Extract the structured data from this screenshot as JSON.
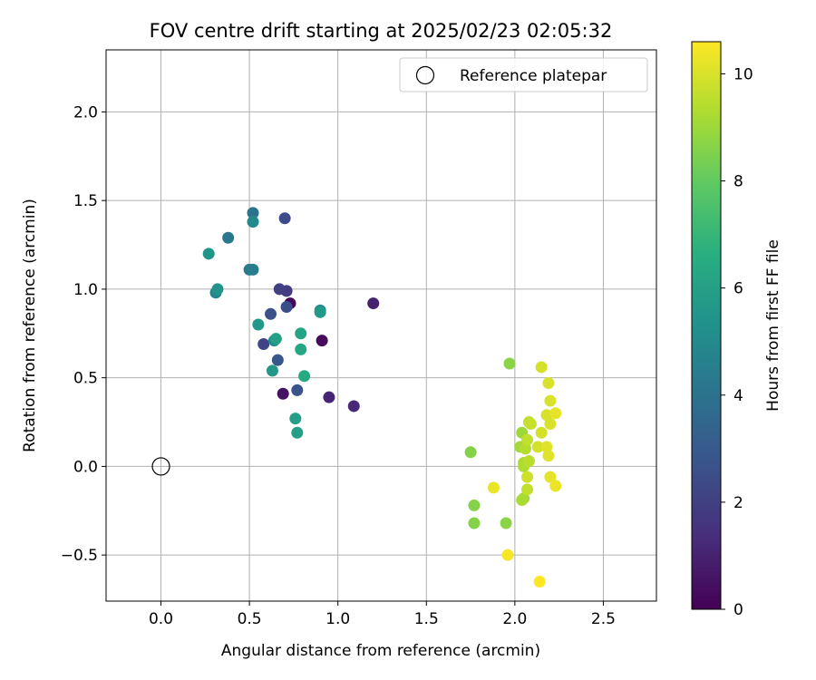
{
  "chart_data": {
    "type": "scatter",
    "title": "FOV centre drift starting at 2025/02/23 02:05:32",
    "xlabel": "Angular distance from reference (arcmin)",
    "ylabel": "Rotation from reference (arcmin)",
    "xlim": [
      -0.31,
      2.8
    ],
    "ylim": [
      -0.76,
      2.35
    ],
    "xticks": [
      0.0,
      0.5,
      1.0,
      1.5,
      2.0,
      2.5
    ],
    "xtick_labels": [
      "0.0",
      "0.5",
      "1.0",
      "1.5",
      "2.0",
      "2.5"
    ],
    "yticks": [
      -0.5,
      0.0,
      0.5,
      1.0,
      1.5,
      2.0
    ],
    "ytick_labels": [
      "−0.5",
      "0.0",
      "0.5",
      "1.0",
      "1.5",
      "2.0"
    ],
    "grid": true,
    "legend": {
      "placement": "top-right",
      "entries": [
        "Reference platepar"
      ]
    },
    "colormap": "viridis",
    "colorbar": {
      "label": "Hours from first FF file",
      "range": [
        0,
        10.6
      ],
      "ticks": [
        0,
        2,
        4,
        6,
        8,
        10
      ],
      "tick_labels": [
        "0",
        "2",
        "4",
        "6",
        "8",
        "10"
      ]
    },
    "reference_point": {
      "x": 0.0,
      "y": 0.0
    },
    "points": [
      {
        "x": 0.73,
        "y": 0.92,
        "h": 0.2
      },
      {
        "x": 0.91,
        "y": 0.71,
        "h": 0.3
      },
      {
        "x": 0.69,
        "y": 0.41,
        "h": 0.5
      },
      {
        "x": 1.2,
        "y": 0.92,
        "h": 1.0
      },
      {
        "x": 0.95,
        "y": 0.39,
        "h": 1.1
      },
      {
        "x": 1.09,
        "y": 0.34,
        "h": 1.2
      },
      {
        "x": 0.71,
        "y": 0.99,
        "h": 1.9
      },
      {
        "x": 0.67,
        "y": 1.0,
        "h": 2.0
      },
      {
        "x": 0.58,
        "y": 0.69,
        "h": 2.2
      },
      {
        "x": 0.7,
        "y": 1.4,
        "h": 2.4
      },
      {
        "x": 0.71,
        "y": 0.9,
        "h": 2.5
      },
      {
        "x": 0.62,
        "y": 0.86,
        "h": 2.6
      },
      {
        "x": 0.77,
        "y": 0.43,
        "h": 2.7
      },
      {
        "x": 0.66,
        "y": 0.6,
        "h": 2.8
      },
      {
        "x": 0.52,
        "y": 1.43,
        "h": 4.0
      },
      {
        "x": 0.38,
        "y": 1.29,
        "h": 4.2
      },
      {
        "x": 0.5,
        "y": 1.11,
        "h": 4.4
      },
      {
        "x": 0.52,
        "y": 1.11,
        "h": 4.5
      },
      {
        "x": 0.31,
        "y": 0.98,
        "h": 4.8
      },
      {
        "x": 0.52,
        "y": 1.38,
        "h": 5.0
      },
      {
        "x": 0.64,
        "y": 0.71,
        "h": 5.0
      },
      {
        "x": 0.9,
        "y": 0.88,
        "h": 5.1
      },
      {
        "x": 0.27,
        "y": 1.2,
        "h": 5.5
      },
      {
        "x": 0.32,
        "y": 1.0,
        "h": 5.4
      },
      {
        "x": 0.55,
        "y": 0.8,
        "h": 5.6
      },
      {
        "x": 0.63,
        "y": 0.54,
        "h": 5.6
      },
      {
        "x": 0.9,
        "y": 0.87,
        "h": 5.7
      },
      {
        "x": 0.76,
        "y": 0.27,
        "h": 5.9
      },
      {
        "x": 0.77,
        "y": 0.19,
        "h": 6.0
      },
      {
        "x": 0.65,
        "y": 0.72,
        "h": 6.0
      },
      {
        "x": 0.79,
        "y": 0.75,
        "h": 6.1
      },
      {
        "x": 0.79,
        "y": 0.66,
        "h": 6.3
      },
      {
        "x": 0.81,
        "y": 0.51,
        "h": 6.4
      },
      {
        "x": 1.75,
        "y": 0.08,
        "h": 8.6
      },
      {
        "x": 1.77,
        "y": -0.22,
        "h": 8.6
      },
      {
        "x": 1.77,
        "y": -0.32,
        "h": 8.6
      },
      {
        "x": 1.95,
        "y": -0.32,
        "h": 8.7
      },
      {
        "x": 1.97,
        "y": 0.58,
        "h": 8.7
      },
      {
        "x": 2.04,
        "y": 0.19,
        "h": 9.0
      },
      {
        "x": 2.03,
        "y": 0.11,
        "h": 9.1
      },
      {
        "x": 2.05,
        "y": -0.18,
        "h": 9.1
      },
      {
        "x": 2.04,
        "y": -0.19,
        "h": 9.2
      },
      {
        "x": 2.05,
        "y": 0.02,
        "h": 9.2
      },
      {
        "x": 2.05,
        "y": 0.0,
        "h": 9.3
      },
      {
        "x": 2.06,
        "y": 0.1,
        "h": 9.4
      },
      {
        "x": 2.08,
        "y": 0.03,
        "h": 9.5
      },
      {
        "x": 2.07,
        "y": 0.15,
        "h": 9.6
      },
      {
        "x": 2.07,
        "y": -0.13,
        "h": 9.6
      },
      {
        "x": 2.08,
        "y": 0.25,
        "h": 9.6
      },
      {
        "x": 2.09,
        "y": 0.24,
        "h": 9.7
      },
      {
        "x": 2.07,
        "y": -0.06,
        "h": 9.8
      },
      {
        "x": 2.13,
        "y": 0.11,
        "h": 9.9
      },
      {
        "x": 2.15,
        "y": 0.19,
        "h": 9.9
      },
      {
        "x": 2.15,
        "y": 0.56,
        "h": 9.9
      },
      {
        "x": 2.18,
        "y": 0.29,
        "h": 10.0
      },
      {
        "x": 2.19,
        "y": 0.47,
        "h": 10.0
      },
      {
        "x": 2.2,
        "y": 0.37,
        "h": 10.0
      },
      {
        "x": 2.2,
        "y": 0.24,
        "h": 10.0
      },
      {
        "x": 2.18,
        "y": 0.11,
        "h": 10.1
      },
      {
        "x": 2.19,
        "y": 0.06,
        "h": 10.1
      },
      {
        "x": 2.2,
        "y": -0.06,
        "h": 10.2
      },
      {
        "x": 2.23,
        "y": 0.3,
        "h": 10.2
      },
      {
        "x": 2.23,
        "y": -0.11,
        "h": 10.3
      },
      {
        "x": 1.88,
        "y": -0.12,
        "h": 10.3
      },
      {
        "x": 1.96,
        "y": -0.5,
        "h": 10.5
      },
      {
        "x": 2.14,
        "y": -0.65,
        "h": 10.6
      }
    ]
  }
}
